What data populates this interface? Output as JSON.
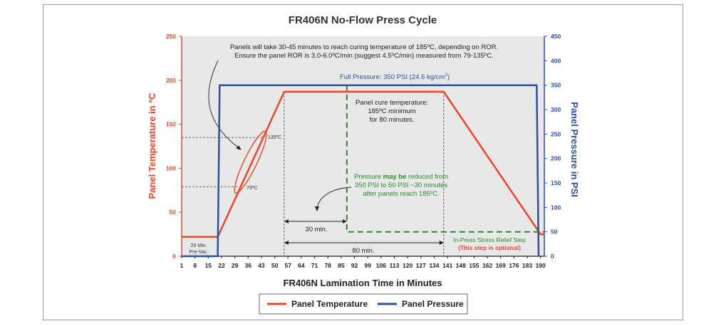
{
  "chart_data": {
    "type": "line",
    "title": "FR406N No-Flow Press Cycle",
    "xlabel": "FR406N Lamination Time in Minutes",
    "ylabel_left": "Panel Temperature in ºC",
    "ylabel_right": "Panel Pressure in PSI",
    "x_ticks": [
      "1",
      "8",
      "15",
      "22",
      "29",
      "36",
      "43",
      "50",
      "57",
      "64",
      "71",
      "78",
      "85",
      "92",
      "99",
      "106",
      "113",
      "120",
      "127",
      "134",
      "141",
      "148",
      "155",
      "162",
      "169",
      "176",
      "183",
      "190"
    ],
    "y_left_ticks": [
      "0",
      "50",
      "100",
      "150",
      "200",
      "250"
    ],
    "y_right_ticks": [
      "0",
      "50",
      "100",
      "150",
      "200",
      "250",
      "300",
      "350",
      "400",
      "450"
    ],
    "ylim_left": [
      0,
      250
    ],
    "ylim_right": [
      0,
      450
    ],
    "xlim": [
      1,
      192
    ],
    "grid": false,
    "legend_position": "bottom-center",
    "series": [
      {
        "name": "Panel Temperature",
        "axis": "left",
        "color": "#e8462c",
        "points": [
          [
            1,
            22
          ],
          [
            20,
            22
          ],
          [
            55,
            187
          ],
          [
            139,
            187
          ],
          [
            190,
            25
          ],
          [
            192,
            25
          ]
        ]
      },
      {
        "name": "Panel Pressure",
        "axis": "right",
        "color": "#2e4fa0",
        "points": [
          [
            1,
            0
          ],
          [
            20,
            0
          ],
          [
            21,
            350
          ],
          [
            188,
            350
          ],
          [
            189,
            0
          ]
        ]
      },
      {
        "name": "",
        "axis": "right",
        "color": "#2a8a2a",
        "dashed": true,
        "points": [
          [
            88,
            350
          ],
          [
            88,
            50
          ],
          [
            192,
            50
          ]
        ]
      }
    ],
    "annotations": {
      "ror_line1": "Panels will take 30-45 minutes to reach curing temperature of 185ºC, depending on ROR.",
      "ror_line2": "Ensure the panel ROR is 3.0-6.0ºC/min (suggest 4.5ºC/min) measured from 79-135ºC.",
      "full_pressure_prefix": "Full Pressure: 350 PSI (24.6 kg/cm",
      "full_pressure_sup": "2",
      "full_pressure_suffix": ")",
      "cure_line1": "Panel cure temperature:",
      "cure_line2": "185ºC minimum",
      "cure_line3": "for 80 minutes.",
      "reduce_line1_a": "Pressure ",
      "reduce_line1_b": "may be",
      "reduce_line1_c": " reduced from",
      "reduce_line2": "350 PSI to 50 PSI ~30 minutes",
      "reduce_line3": "after panels reach 185ºC.",
      "label_135": "135ºC",
      "label_79": "79ºC",
      "thirty_min": "30 min.",
      "eighty_min": "80 min.",
      "prevac_line1": "20 Min.",
      "prevac_line2": "Pre-Vac.",
      "stress_line1": "In-Press Stress Relief Step",
      "stress_line2": "(This step is optional)"
    }
  },
  "legend": {
    "temperature": "Panel Temperature",
    "pressure": "Panel Pressure"
  },
  "colors": {
    "temperature": "#e8462c",
    "pressure": "#2e4fa0",
    "optional_pressure": "#2a8a2a",
    "plot_background": "#e8e8e8"
  }
}
